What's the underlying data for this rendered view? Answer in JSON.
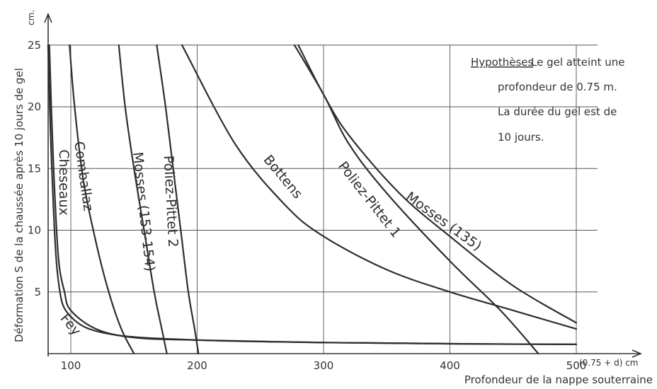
{
  "chart_data": {
    "type": "line",
    "xlabel": "Profondeur de la nappe souterraine",
    "xunit": "(0.75 + d) cm",
    "ylabel": "Déformation S de la chaussée après 10 jours de gel",
    "yunit": "cm.",
    "xlim": [
      80,
      500
    ],
    "ylim": [
      0,
      25
    ],
    "x_ticks": [
      100,
      200,
      300,
      400,
      500
    ],
    "y_ticks": [
      5,
      10,
      15,
      20,
      25
    ],
    "grid": true,
    "hypotheses": {
      "title": "Hypothèses",
      "lines": [
        "Le gel atteint une",
        "profondeur de 0.75 m.",
        "La durée du gel est de",
        "10 jours."
      ]
    },
    "series": [
      {
        "name": "Fey",
        "x": [
          82,
          85,
          90,
          100,
          130,
          200,
          300,
          400,
          500
        ],
        "y": [
          25,
          15,
          6,
          3,
          1.6,
          1.1,
          0.9,
          0.8,
          0.75
        ]
      },
      {
        "name": "Cheseaux",
        "x": [
          83,
          86,
          90,
          95,
          100,
          120,
          150,
          200,
          300,
          400,
          500
        ],
        "y": [
          25,
          16,
          8,
          5,
          3.5,
          2,
          1.3,
          1.1,
          0.9,
          0.8,
          0.75
        ]
      },
      {
        "name": "Comballaz",
        "x": [
          99,
          103,
          110,
          120,
          130,
          140,
          150
        ],
        "y": [
          25,
          20,
          14,
          9,
          5,
          2,
          0
        ]
      },
      {
        "name": "Mosses (153-154)",
        "x": [
          138,
          143,
          150,
          158,
          166,
          172,
          176
        ],
        "y": [
          25,
          20,
          15,
          10,
          5,
          2,
          0
        ]
      },
      {
        "name": "Poliez-Pittet 2",
        "x": [
          168,
          175,
          181,
          187,
          193,
          198,
          201
        ],
        "y": [
          25,
          20,
          15,
          10,
          5,
          2,
          0
        ]
      },
      {
        "name": "Bottens",
        "x": [
          188,
          230,
          270,
          300,
          350,
          400,
          450,
          500
        ],
        "y": [
          25,
          17,
          12,
          9.5,
          6.8,
          5,
          3.5,
          2
        ]
      },
      {
        "name": "Poliez-Pittet 1",
        "x": [
          277,
          300,
          320,
          350,
          400,
          440,
          470
        ],
        "y": [
          25,
          21,
          17,
          13,
          7.5,
          3.5,
          0
        ]
      },
      {
        "name": "Mosses (135)",
        "x": [
          280,
          300,
          320,
          360,
          400,
          450,
          500
        ],
        "y": [
          25,
          21,
          17.7,
          13,
          9.5,
          5.5,
          2.5
        ]
      }
    ]
  }
}
